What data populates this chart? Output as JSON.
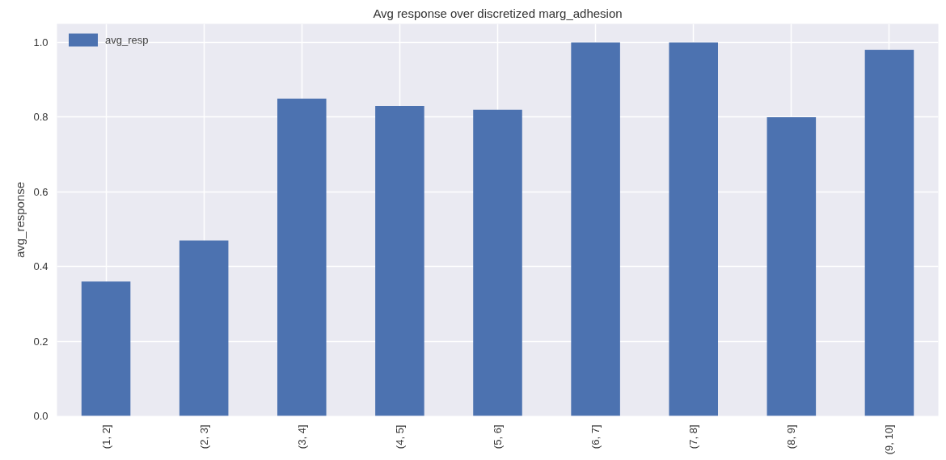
{
  "chart_data": {
    "type": "bar",
    "title": "Avg response over discretized marg_adhesion",
    "ylabel": "avg_response",
    "categories": [
      "(1, 2]",
      "(2, 3]",
      "(3, 4]",
      "(4, 5]",
      "(5, 6]",
      "(6, 7]",
      "(7, 8]",
      "(8, 9]",
      "(9, 10]"
    ],
    "series": [
      {
        "name": "avg_resp",
        "color": "#4c72b0",
        "values": [
          0.36,
          0.47,
          0.85,
          0.83,
          0.82,
          1.0,
          1.0,
          0.8,
          0.98
        ]
      }
    ],
    "ylim": [
      0,
      1.05
    ],
    "yticks": [
      {
        "value": 0,
        "label": "0.0"
      },
      {
        "value": 0.2,
        "label": "0.2"
      },
      {
        "value": 0.4,
        "label": "0.4"
      },
      {
        "value": 0.6,
        "label": "0.6"
      },
      {
        "value": 0.8,
        "label": "0.8"
      },
      {
        "value": 1,
        "label": "1.0"
      }
    ],
    "grid": true,
    "legend": "top left"
  }
}
